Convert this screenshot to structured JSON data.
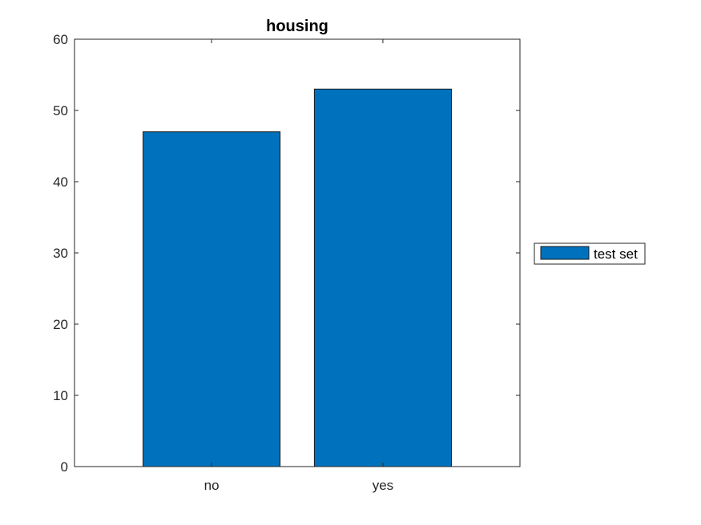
{
  "chart_data": {
    "type": "bar",
    "title": "housing",
    "categories": [
      "no",
      "yes"
    ],
    "series": [
      {
        "name": "test set",
        "values": [
          47,
          53
        ],
        "color": "#0072BD"
      }
    ],
    "xlabel": "",
    "ylabel": "",
    "ylim": [
      0,
      60
    ],
    "yticks": [
      0,
      10,
      20,
      30,
      40,
      50,
      60
    ],
    "grid": false,
    "legend_position": "outside-right"
  }
}
